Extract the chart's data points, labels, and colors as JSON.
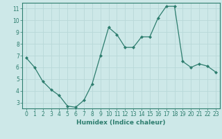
{
  "x": [
    0,
    1,
    2,
    3,
    4,
    5,
    6,
    7,
    8,
    9,
    10,
    11,
    12,
    13,
    14,
    15,
    16,
    17,
    18,
    19,
    20,
    21,
    22,
    23
  ],
  "y": [
    6.8,
    6.0,
    4.8,
    4.1,
    3.6,
    2.7,
    2.6,
    3.2,
    4.6,
    7.0,
    9.4,
    8.8,
    7.7,
    7.7,
    8.6,
    8.6,
    10.2,
    11.2,
    11.2,
    6.5,
    6.0,
    6.3,
    6.1,
    5.6
  ],
  "line_color": "#2d7d6e",
  "marker": "D",
  "marker_size": 2.0,
  "bg_color": "#cde8e8",
  "grid_color": "#b8d8d8",
  "xlabel": "Humidex (Indice chaleur)",
  "xlim": [
    -0.5,
    23.5
  ],
  "ylim": [
    2.5,
    11.5
  ],
  "yticks": [
    3,
    4,
    5,
    6,
    7,
    8,
    9,
    10,
    11
  ],
  "xticks": [
    0,
    1,
    2,
    3,
    4,
    5,
    6,
    7,
    8,
    9,
    10,
    11,
    12,
    13,
    14,
    15,
    16,
    17,
    18,
    19,
    20,
    21,
    22,
    23
  ],
  "tick_label_size": 5.5,
  "xlabel_size": 6.5,
  "linewidth": 0.9
}
